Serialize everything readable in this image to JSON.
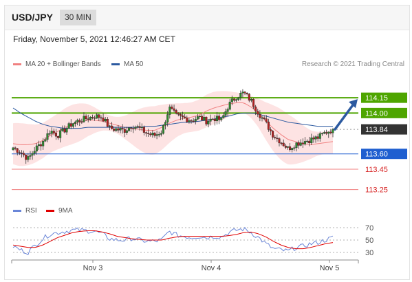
{
  "header": {
    "symbol": "USD/JPY",
    "timeframe": "30 MIN"
  },
  "date_line": "Friday, November 5, 2021 12:46:27 AM CET",
  "legend_main": [
    {
      "label": "MA 20 + Bollinger Bands",
      "color": "#f08080"
    },
    {
      "label": "MA 50",
      "color": "#2c5aa0"
    }
  ],
  "legend_rsi": [
    {
      "label": "RSI",
      "color": "#6a86d8"
    },
    {
      "label": "9MA",
      "color": "#e00000"
    }
  ],
  "copyright": "Research © 2021 Trading Central",
  "colors": {
    "up": "#2e8b2e",
    "down": "#b22222",
    "resistance": "#4ea500",
    "pivot": "#1f5fd0",
    "support": "#f08080",
    "current": "#333333",
    "arrow": "#2c5aa0",
    "band": "#fde0e0"
  },
  "chart_data": [
    {
      "type": "candlestick",
      "instrument": "USD/JPY",
      "interval": "30 MIN",
      "x_tick_labels": [
        "Nov 3",
        "Nov 4",
        "Nov 5"
      ],
      "ylim": [
        113.18,
        114.38
      ],
      "levels": [
        {
          "label": "114.15",
          "value": 114.15,
          "kind": "resistance"
        },
        {
          "label": "114.00",
          "value": 114.0,
          "kind": "resistance"
        },
        {
          "label": "113.84",
          "value": 113.84,
          "kind": "current"
        },
        {
          "label": "113.60",
          "value": 113.6,
          "kind": "pivot"
        },
        {
          "label": "113.45",
          "value": 113.45,
          "kind": "support"
        },
        {
          "label": "113.25",
          "value": 113.25,
          "kind": "support"
        }
      ],
      "close_path": [
        113.66,
        113.62,
        113.55,
        113.65,
        113.72,
        113.83,
        113.78,
        113.84,
        113.9,
        113.93,
        113.95,
        113.97,
        113.96,
        113.85,
        113.84,
        113.83,
        113.88,
        113.85,
        113.8,
        113.78,
        113.82,
        114.05,
        113.97,
        113.95,
        113.93,
        113.96,
        113.92,
        113.95,
        113.93,
        114.08,
        114.16,
        114.2,
        114.12,
        114.0,
        113.9,
        113.78,
        113.72,
        113.65,
        113.7,
        113.72,
        113.74,
        113.76,
        113.81,
        113.84
      ],
      "ma20": [
        113.7,
        113.69,
        113.69,
        113.7,
        113.73,
        113.78,
        113.82,
        113.86,
        113.89,
        113.91,
        113.93,
        113.93,
        113.92,
        113.9,
        113.88,
        113.86,
        113.85,
        113.84,
        113.83,
        113.83,
        113.86,
        113.9,
        113.93,
        113.95,
        113.96,
        113.98,
        114.02,
        114.05,
        114.07,
        114.09,
        114.1,
        114.1,
        114.06,
        114.0,
        113.92,
        113.85,
        113.79,
        113.74,
        113.72,
        113.7,
        113.69,
        113.7,
        113.71,
        113.72
      ],
      "ma50": [
        114.05,
        114.0,
        113.96,
        113.92,
        113.89,
        113.87,
        113.86,
        113.85,
        113.85,
        113.85,
        113.86,
        113.86,
        113.86,
        113.86,
        113.86,
        113.86,
        113.86,
        113.86,
        113.87,
        113.87,
        113.88,
        113.89,
        113.9,
        113.91,
        113.91,
        113.92,
        113.93,
        113.94,
        113.96,
        113.97,
        113.99,
        114.0,
        114.0,
        113.99,
        113.97,
        113.95,
        113.93,
        113.91,
        113.9,
        113.89,
        113.88,
        113.87,
        113.87,
        113.87
      ]
    },
    {
      "type": "line",
      "name": "RSI",
      "y_tick_labels": [
        "70",
        "50",
        "30"
      ],
      "ylim": [
        20,
        80
      ],
      "rsi": [
        40,
        34,
        30,
        42,
        52,
        60,
        62,
        64,
        66,
        66,
        65,
        64,
        60,
        52,
        50,
        50,
        53,
        50,
        48,
        48,
        50,
        64,
        58,
        56,
        54,
        56,
        54,
        56,
        55,
        62,
        66,
        68,
        62,
        54,
        44,
        36,
        34,
        32,
        38,
        40,
        44,
        46,
        50,
        54
      ],
      "ma9": [
        42,
        40,
        38,
        38,
        42,
        48,
        54,
        58,
        62,
        64,
        65,
        65,
        63,
        60,
        56,
        54,
        52,
        51,
        50,
        50,
        50,
        53,
        55,
        56,
        56,
        56,
        56,
        56,
        56,
        57,
        59,
        62,
        63,
        60,
        55,
        48,
        42,
        38,
        36,
        36,
        38,
        41,
        44,
        46
      ]
    }
  ]
}
